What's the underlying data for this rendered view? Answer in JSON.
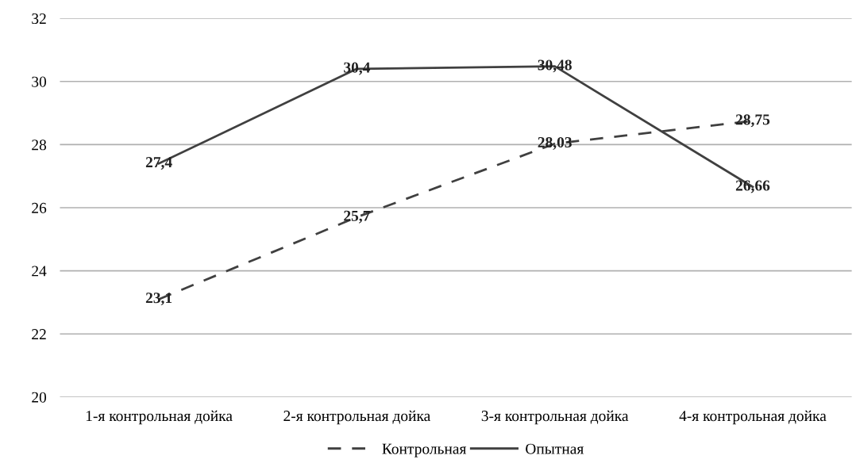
{
  "chart_data": {
    "type": "line",
    "categories": [
      "1-я контрольная дойка",
      "2-я контрольная дойка",
      "3-я контрольная дойка",
      "4-я контрольная дойка"
    ],
    "series": [
      {
        "name": "Контрольная",
        "color": "#404040",
        "line_style": "dashed",
        "values": [
          23.1,
          25.7,
          28.03,
          28.75
        ],
        "value_labels": [
          "23,1",
          "25,7",
          "28,03",
          "28,75"
        ]
      },
      {
        "name": "Опытная",
        "color": "#404040",
        "line_style": "solid",
        "values": [
          27.4,
          30.4,
          30.48,
          26.66
        ],
        "value_labels": [
          "27,4",
          "30,4",
          "30,48",
          "26,66"
        ]
      }
    ],
    "ylim": [
      20,
      32
    ],
    "yticks": [
      20,
      22,
      24,
      26,
      28,
      30,
      32
    ],
    "grid": "y",
    "legend": "bottom",
    "marker": "none"
  }
}
